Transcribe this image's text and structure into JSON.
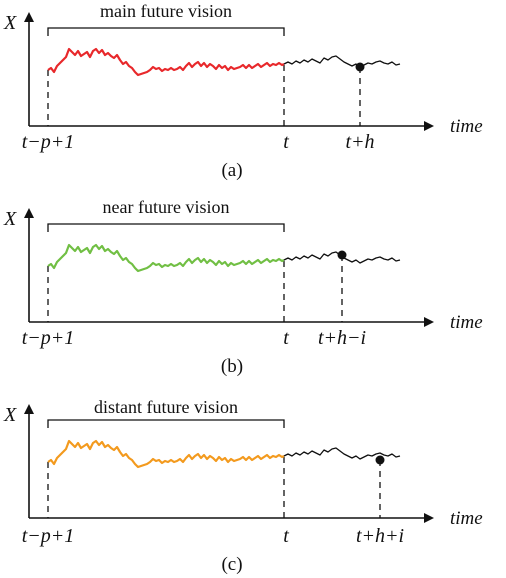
{
  "axis_labels": {
    "y": "X",
    "x": "time"
  },
  "ticks": {
    "start": "t−p+1",
    "now": "t"
  },
  "panels": [
    {
      "id": "a",
      "title": "main future vision",
      "color": "#e8282b",
      "target_label": "t+h",
      "target_offset": 0,
      "caption": "(a)"
    },
    {
      "id": "b",
      "title": "near future vision",
      "color": "#71bf44",
      "target_label": "t+h−i",
      "target_offset": -1,
      "caption": "(b)"
    },
    {
      "id": "c",
      "title": "distant future vision",
      "color": "#f39a1e",
      "target_label": "t+h+i",
      "target_offset": 1,
      "caption": "(c)"
    }
  ]
}
